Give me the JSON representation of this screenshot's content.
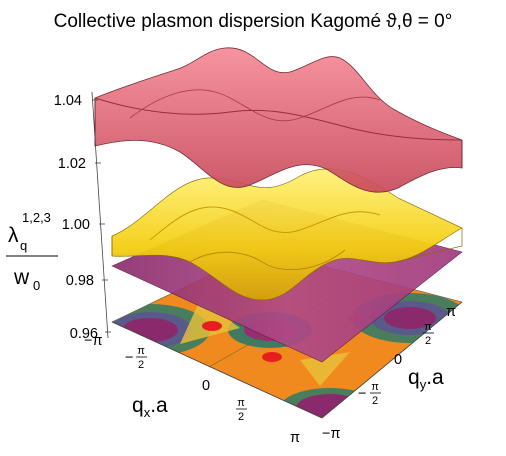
{
  "chart_data": {
    "type": "surface",
    "title": "Collective plasmon dispersion Kagomé ϑ,θ = 0°",
    "xlabel": {
      "base": "q",
      "sub": "x",
      "suffix": ".a"
    },
    "ylabel": {
      "base": "q",
      "sub": "y",
      "suffix": ".a"
    },
    "zlabel": {
      "base": "λ",
      "sub": "q",
      "sup": "1,2,3",
      "den": "w",
      "den_sub": "0"
    },
    "z_ticks": [
      "1.04",
      "1.02",
      "1.00",
      "0.98",
      "0.96"
    ],
    "zlim": [
      0.96,
      1.04
    ],
    "x_ticks": [
      "−π",
      "−π/2",
      "0",
      "π/2",
      "π"
    ],
    "y_ticks": [
      "−π",
      "−π/2",
      "0",
      "π/2",
      "π"
    ],
    "xlim": [
      -3.1416,
      3.1416
    ],
    "ylim": [
      -3.1416,
      3.1416
    ],
    "series": [
      {
        "band": 3,
        "color": "#e8606d",
        "z_range": [
          1.005,
          1.04
        ]
      },
      {
        "band": 2,
        "color": "#f2d000",
        "z_range": [
          0.985,
          1.012
        ]
      },
      {
        "band": 1,
        "color": "#a83a82",
        "z_range": [
          0.98,
          0.98
        ]
      }
    ],
    "contour_floor": true,
    "grid": false
  }
}
